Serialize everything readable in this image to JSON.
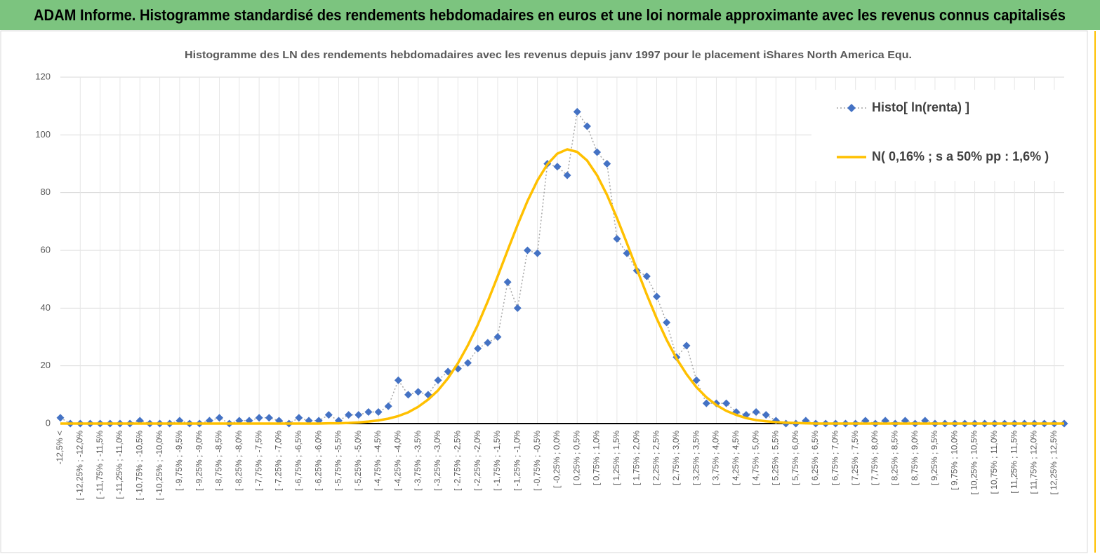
{
  "chart_data": {
    "type": "line",
    "title": "ADAM Informe. Histogramme standardisé des rendements hebdomadaires en euros et une loi normale approximante avec les revenus connus capitalisés",
    "subtitle": "Histogramme des LN des rendements hebdomadaires avec les revenus depuis janv 1997 pour le placement iShares North America Equ.",
    "categories": [
      "-12,5% <",
      null,
      "[ -12,25% ; -12,0%",
      null,
      "[ -11,75% ; -11,5%",
      null,
      "[ -11,25% ; -11,0%",
      null,
      "[ -10,75% ; -10,5%",
      null,
      "[ -10,25% ; -10,0%",
      null,
      "[ -9,75% ; -9,5%",
      null,
      "[ -9,25% ; -9,0%",
      null,
      "[ -8,75% ; -8,5%",
      null,
      "[ -8,25% ; -8,0%",
      null,
      "[ -7,75% ; -7,5%",
      null,
      "[ -7,25% ; -7,0%",
      null,
      "[ -6,75% ; -6,5%",
      null,
      "[ -6,25% ; -6,0%",
      null,
      "[ -5,75% ; -5,5%",
      null,
      "[ -5,25% ; -5,0%",
      null,
      "[ -4,75% ; -4,5%",
      null,
      "[ -4,25% ; -4,0%",
      null,
      "[ -3,75% ; -3,5%",
      null,
      "[ -3,25% ; -3,0%",
      null,
      "[ -2,75% ; -2,5%",
      null,
      "[ -2,25% ; -2,0%",
      null,
      "[ -1,75% ; -1,5%",
      null,
      "[ -1,25% ; -1,0%",
      null,
      "[ -0,75% ; -0,5%",
      null,
      "[ -0,25% ; 0,0%",
      null,
      "[ 0,25% ; 0,5%",
      null,
      "[ 0,75% ; 1,0%",
      null,
      "[ 1,25% ; 1,5%",
      null,
      "[ 1,75% ; 2,0%",
      null,
      "[ 2,25% ; 2,5%",
      null,
      "[ 2,75% ; 3,0%",
      null,
      "[ 3,25% ; 3,5%",
      null,
      "[ 3,75% ; 4,0%",
      null,
      "[ 4,25% ; 4,5%",
      null,
      "[ 4,75% ; 5,0%",
      null,
      "[ 5,25% ; 5,5%",
      null,
      "[ 5,75% ; 6,0%",
      null,
      "[ 6,25% ; 6,5%",
      null,
      "[ 6,75% ; 7,0%",
      null,
      "[ 7,25% ; 7,5%",
      null,
      "[ 7,75% ; 8,0%",
      null,
      "[ 8,25% ; 8,5%",
      null,
      "[ 8,75% ; 9,0%",
      null,
      "[ 9,25% ; 9,5%",
      null,
      "[ 9,75% ; 10,0%",
      null,
      "[ 10,25% ; 10,5%",
      null,
      "[ 10,75% ; 11,0%",
      null,
      "[ 11,25% ; 11,5%",
      null,
      "[ 11,75% ; 12,0%",
      null,
      "[ 12,25% ; 12,5%",
      null
    ],
    "series": [
      {
        "name": "Histo[ ln(renta) ]",
        "color": "#4472c4",
        "line_color": "#a6a6a6",
        "line_style": "dotted",
        "marker": "diamond",
        "values": [
          2,
          0,
          0,
          0,
          0,
          0,
          0,
          0,
          1,
          0,
          0,
          0,
          1,
          0,
          0,
          1,
          2,
          0,
          1,
          1,
          2,
          2,
          1,
          0,
          2,
          1,
          1,
          3,
          1,
          3,
          3,
          4,
          4,
          6,
          15,
          10,
          11,
          10,
          15,
          18,
          19,
          21,
          26,
          28,
          30,
          49,
          40,
          60,
          59,
          90,
          89,
          86,
          108,
          103,
          94,
          90,
          64,
          59,
          53,
          51,
          44,
          35,
          23,
          27,
          15,
          7,
          7,
          7,
          4,
          3,
          4,
          3,
          1,
          0,
          0,
          1,
          0,
          0,
          0,
          0,
          0,
          1,
          0,
          1,
          0,
          1,
          0,
          1,
          0,
          0,
          0,
          0,
          0,
          0,
          0,
          0,
          0,
          0,
          0,
          0,
          0,
          0
        ]
      },
      {
        "name": "N( 0,16% ; s a 50% pp : 1,6% )",
        "color": "#ffc000",
        "line_style": "solid",
        "marker": "none",
        "values": [
          0,
          0,
          0,
          0,
          0,
          0,
          0,
          0,
          0,
          0,
          0,
          0,
          0,
          0,
          0,
          0,
          0,
          0,
          0,
          0,
          0,
          0,
          0,
          0,
          0,
          0,
          0,
          0.1,
          0.1,
          0.2,
          0.4,
          0.7,
          1.1,
          1.7,
          2.6,
          3.9,
          5.8,
          8.3,
          11.5,
          15.7,
          20.9,
          27.1,
          34.2,
          42.3,
          51.0,
          60.0,
          68.8,
          77.1,
          84.2,
          89.8,
          93.5,
          95.0,
          94.1,
          91.1,
          86.0,
          79.2,
          71.2,
          62.5,
          53.5,
          44.7,
          36.4,
          29.0,
          22.5,
          17.1,
          12.6,
          9.1,
          6.4,
          4.4,
          3.0,
          1.9,
          1.2,
          0.8,
          0.5,
          0.3,
          0.2,
          0.1,
          0,
          0,
          0,
          0,
          0,
          0,
          0,
          0,
          0,
          0,
          0,
          0,
          0,
          0,
          0,
          0,
          0,
          0,
          0,
          0,
          0,
          0,
          0,
          0,
          0,
          0
        ]
      }
    ],
    "ylim": [
      0,
      120
    ],
    "yticks": [
      0,
      20,
      40,
      60,
      80,
      100,
      120
    ],
    "grid": true,
    "legend": "top-right"
  }
}
